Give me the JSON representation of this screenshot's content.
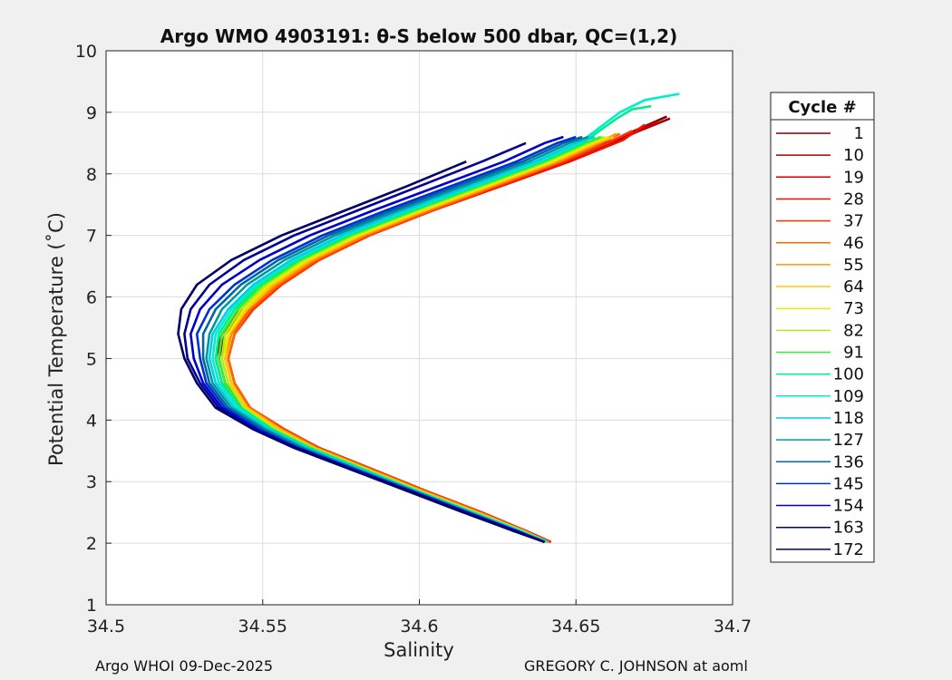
{
  "chart_data": {
    "type": "line",
    "title": "Argo WMO 4903191: θ-S below 500 dbar,  QC=(1,2)",
    "xlabel": "Salinity",
    "ylabel": "Potential Temperature (˚C)",
    "xlim": [
      34.5,
      34.7
    ],
    "ylim": [
      1,
      10
    ],
    "x_ticks": [
      "34.5",
      "34.55",
      "34.6",
      "34.65",
      "34.7"
    ],
    "y_ticks": [
      "1",
      "2",
      "3",
      "4",
      "5",
      "6",
      "7",
      "8",
      "9",
      "10"
    ],
    "grid": true,
    "legend_title": "Cycle #",
    "legend_position": "right",
    "series": [
      {
        "name": "1",
        "color": "#800000",
        "x": [
          34.641,
          34.633,
          34.618,
          34.6,
          34.583,
          34.566,
          34.554,
          34.543,
          34.537,
          34.535,
          34.537,
          34.543,
          34.552,
          34.564,
          34.58,
          34.6,
          34.622,
          34.645,
          34.662,
          34.679
        ],
        "y": [
          2.02,
          2.2,
          2.5,
          2.85,
          3.2,
          3.55,
          3.85,
          4.2,
          4.6,
          5.0,
          5.4,
          5.8,
          6.2,
          6.6,
          7.0,
          7.4,
          7.8,
          8.2,
          8.55,
          8.93
        ]
      },
      {
        "name": "10",
        "color": "#a00000",
        "x": [
          34.642,
          34.634,
          34.619,
          34.601,
          34.584,
          34.567,
          34.555,
          34.544,
          34.538,
          34.536,
          34.538,
          34.544,
          34.553,
          34.565,
          34.581,
          34.601,
          34.623,
          34.646,
          34.663,
          34.68
        ],
        "y": [
          2.02,
          2.2,
          2.5,
          2.85,
          3.2,
          3.55,
          3.85,
          4.2,
          4.6,
          5.0,
          5.4,
          5.8,
          6.2,
          6.6,
          7.0,
          7.4,
          7.8,
          8.2,
          8.55,
          8.9
        ]
      },
      {
        "name": "19",
        "color": "#cc0000",
        "x": [
          34.642,
          34.634,
          34.619,
          34.602,
          34.585,
          34.568,
          34.556,
          34.545,
          34.54,
          34.538,
          34.54,
          34.546,
          34.555,
          34.567,
          34.583,
          34.603,
          34.625,
          34.647,
          34.664,
          34.676
        ],
        "y": [
          2.02,
          2.2,
          2.5,
          2.85,
          3.2,
          3.55,
          3.85,
          4.2,
          4.6,
          5.0,
          5.4,
          5.8,
          6.2,
          6.6,
          7.0,
          7.4,
          7.8,
          8.2,
          8.55,
          8.85
        ]
      },
      {
        "name": "28",
        "color": "#ee1100",
        "x": [
          34.642,
          34.634,
          34.62,
          34.602,
          34.585,
          34.568,
          34.556,
          34.546,
          34.541,
          34.539,
          34.541,
          34.547,
          34.556,
          34.568,
          34.584,
          34.604,
          34.626,
          34.648,
          34.665,
          34.672
        ],
        "y": [
          2.02,
          2.2,
          2.5,
          2.85,
          3.2,
          3.55,
          3.85,
          4.2,
          4.6,
          5.0,
          5.4,
          5.8,
          6.2,
          6.6,
          7.0,
          7.4,
          7.8,
          8.2,
          8.55,
          8.8
        ]
      },
      {
        "name": "37",
        "color": "#ff3300",
        "x": [
          34.642,
          34.634,
          34.62,
          34.602,
          34.585,
          34.568,
          34.557,
          34.546,
          34.541,
          34.539,
          34.541,
          34.547,
          34.556,
          34.568,
          34.584,
          34.604,
          34.625,
          34.646,
          34.66,
          34.668
        ],
        "y": [
          2.02,
          2.2,
          2.5,
          2.85,
          3.2,
          3.55,
          3.85,
          4.2,
          4.6,
          5.0,
          5.4,
          5.8,
          6.2,
          6.6,
          7.0,
          7.4,
          7.8,
          8.2,
          8.5,
          8.7
        ]
      },
      {
        "name": "46",
        "color": "#ff6600",
        "x": [
          34.641,
          34.633,
          34.619,
          34.601,
          34.584,
          34.567,
          34.556,
          34.546,
          34.541,
          34.539,
          34.541,
          34.546,
          34.555,
          34.567,
          34.583,
          34.603,
          34.624,
          34.645,
          34.658,
          34.664
        ],
        "y": [
          2.02,
          2.2,
          2.5,
          2.85,
          3.2,
          3.55,
          3.85,
          4.2,
          4.6,
          5.0,
          5.4,
          5.8,
          6.2,
          6.6,
          7.0,
          7.4,
          7.8,
          8.2,
          8.5,
          8.65
        ]
      },
      {
        "name": "55",
        "color": "#ff9900",
        "x": [
          34.641,
          34.633,
          34.619,
          34.601,
          34.584,
          34.567,
          34.556,
          34.545,
          34.54,
          34.538,
          34.54,
          34.545,
          34.554,
          34.566,
          34.582,
          34.602,
          34.623,
          34.644,
          34.657,
          34.663
        ],
        "y": [
          2.02,
          2.2,
          2.5,
          2.85,
          3.2,
          3.55,
          3.85,
          4.2,
          4.6,
          5.0,
          5.4,
          5.8,
          6.2,
          6.6,
          7.0,
          7.4,
          7.8,
          8.2,
          8.5,
          8.65
        ]
      },
      {
        "name": "64",
        "color": "#ffcc00",
        "x": [
          34.641,
          34.633,
          34.618,
          34.6,
          34.583,
          34.566,
          34.555,
          34.545,
          34.54,
          34.538,
          34.539,
          34.545,
          34.553,
          34.565,
          34.581,
          34.601,
          34.622,
          34.643,
          34.656,
          34.662
        ],
        "y": [
          2.02,
          2.2,
          2.5,
          2.85,
          3.2,
          3.55,
          3.85,
          4.2,
          4.6,
          5.0,
          5.4,
          5.8,
          6.2,
          6.6,
          7.0,
          7.4,
          7.8,
          8.2,
          8.5,
          8.6
        ]
      },
      {
        "name": "73",
        "color": "#eeee00",
        "x": [
          34.641,
          34.633,
          34.618,
          34.6,
          34.583,
          34.566,
          34.554,
          34.544,
          34.539,
          34.537,
          34.539,
          34.544,
          34.552,
          34.564,
          34.58,
          34.6,
          34.621,
          34.642,
          34.655,
          34.66
        ],
        "y": [
          2.02,
          2.2,
          2.5,
          2.85,
          3.2,
          3.55,
          3.85,
          4.2,
          4.6,
          5.0,
          5.4,
          5.8,
          6.2,
          6.6,
          7.0,
          7.4,
          7.8,
          8.2,
          8.5,
          8.6
        ]
      },
      {
        "name": "82",
        "color": "#aaee22",
        "x": [
          34.641,
          34.633,
          34.618,
          34.6,
          34.583,
          34.566,
          34.554,
          34.544,
          34.539,
          34.537,
          34.538,
          34.543,
          34.551,
          34.563,
          34.579,
          34.599,
          34.62,
          34.641,
          34.654,
          34.659
        ],
        "y": [
          2.02,
          2.2,
          2.5,
          2.85,
          3.2,
          3.55,
          3.85,
          4.2,
          4.6,
          5.0,
          5.4,
          5.8,
          6.2,
          6.6,
          7.0,
          7.4,
          7.8,
          8.2,
          8.5,
          8.6
        ]
      },
      {
        "name": "91",
        "color": "#33ee33",
        "x": [
          34.641,
          34.632,
          34.617,
          34.599,
          34.582,
          34.565,
          34.553,
          34.543,
          34.538,
          34.536,
          34.537,
          34.542,
          34.55,
          34.562,
          34.578,
          34.598,
          34.619,
          34.64,
          34.653,
          34.658
        ],
        "y": [
          2.02,
          2.2,
          2.5,
          2.85,
          3.2,
          3.55,
          3.85,
          4.2,
          4.6,
          5.0,
          5.4,
          5.8,
          6.2,
          6.6,
          7.0,
          7.4,
          7.8,
          8.2,
          8.5,
          8.6
        ]
      },
      {
        "name": "100",
        "color": "#00ee88",
        "x": [
          34.641,
          34.632,
          34.617,
          34.599,
          34.582,
          34.565,
          34.553,
          34.543,
          34.537,
          34.535,
          34.536,
          34.541,
          34.549,
          34.561,
          34.577,
          34.597,
          34.618,
          34.639,
          34.652,
          34.663,
          34.668,
          34.674
        ],
        "y": [
          2.02,
          2.2,
          2.5,
          2.85,
          3.2,
          3.55,
          3.85,
          4.2,
          4.6,
          5.0,
          5.4,
          5.8,
          6.2,
          6.6,
          7.0,
          7.4,
          7.8,
          8.2,
          8.5,
          8.9,
          9.05,
          9.1
        ]
      },
      {
        "name": "109",
        "color": "#00eecc",
        "x": [
          34.641,
          34.632,
          34.617,
          34.599,
          34.581,
          34.564,
          34.552,
          34.542,
          34.536,
          34.534,
          34.535,
          34.54,
          34.548,
          34.56,
          34.576,
          34.596,
          34.617,
          34.638,
          34.651,
          34.664,
          34.672,
          34.683
        ],
        "y": [
          2.02,
          2.2,
          2.5,
          2.85,
          3.2,
          3.55,
          3.85,
          4.2,
          4.6,
          5.0,
          5.4,
          5.8,
          6.2,
          6.6,
          7.0,
          7.4,
          7.8,
          8.2,
          8.5,
          9.0,
          9.2,
          9.3
        ]
      },
      {
        "name": "118",
        "color": "#00ccee",
        "x": [
          34.64,
          34.632,
          34.617,
          34.599,
          34.581,
          34.564,
          34.552,
          34.541,
          34.535,
          34.533,
          34.534,
          34.539,
          34.547,
          34.559,
          34.575,
          34.595,
          34.616,
          34.637,
          34.65,
          34.656
        ],
        "y": [
          2.02,
          2.2,
          2.5,
          2.85,
          3.2,
          3.55,
          3.85,
          4.2,
          4.6,
          5.0,
          5.4,
          5.8,
          6.2,
          6.6,
          7.0,
          7.4,
          7.8,
          8.2,
          8.5,
          8.6
        ]
      },
      {
        "name": "127",
        "color": "#009999",
        "x": [
          34.64,
          34.631,
          34.616,
          34.598,
          34.58,
          34.563,
          34.551,
          34.54,
          34.534,
          34.532,
          34.533,
          34.537,
          34.545,
          34.557,
          34.573,
          34.593,
          34.614,
          34.635,
          34.648,
          34.654
        ],
        "y": [
          2.02,
          2.2,
          2.5,
          2.85,
          3.2,
          3.55,
          3.85,
          4.2,
          4.6,
          5.0,
          5.4,
          5.8,
          6.2,
          6.6,
          7.0,
          7.4,
          7.8,
          8.2,
          8.5,
          8.6
        ]
      },
      {
        "name": "136",
        "color": "#0066aa",
        "x": [
          34.64,
          34.631,
          34.616,
          34.598,
          34.58,
          34.562,
          34.55,
          34.539,
          34.533,
          34.531,
          34.531,
          34.535,
          34.543,
          34.555,
          34.571,
          34.591,
          34.612,
          34.633,
          34.646,
          34.652
        ],
        "y": [
          2.02,
          2.2,
          2.5,
          2.85,
          3.2,
          3.55,
          3.85,
          4.2,
          4.6,
          5.0,
          5.4,
          5.8,
          6.2,
          6.6,
          7.0,
          7.4,
          7.8,
          8.2,
          8.5,
          8.6
        ]
      },
      {
        "name": "145",
        "color": "#0033cc",
        "x": [
          34.64,
          34.631,
          34.615,
          34.597,
          34.579,
          34.561,
          34.549,
          34.538,
          34.532,
          34.53,
          34.529,
          34.533,
          34.541,
          34.553,
          34.569,
          34.589,
          34.61,
          34.631,
          34.644,
          34.65
        ],
        "y": [
          2.02,
          2.2,
          2.5,
          2.85,
          3.2,
          3.55,
          3.85,
          4.2,
          4.6,
          5.0,
          5.4,
          5.8,
          6.2,
          6.6,
          7.0,
          7.4,
          7.8,
          8.2,
          8.5,
          8.6
        ]
      },
      {
        "name": "154",
        "color": "#0000cc",
        "x": [
          34.64,
          34.631,
          34.615,
          34.597,
          34.579,
          34.561,
          34.548,
          34.537,
          34.531,
          34.528,
          34.527,
          34.53,
          34.537,
          34.549,
          34.565,
          34.585,
          34.606,
          34.627,
          34.64,
          34.646
        ],
        "y": [
          2.02,
          2.2,
          2.5,
          2.85,
          3.2,
          3.55,
          3.85,
          4.2,
          4.6,
          5.0,
          5.4,
          5.8,
          6.2,
          6.6,
          7.0,
          7.4,
          7.8,
          8.2,
          8.5,
          8.6
        ]
      },
      {
        "name": "163",
        "color": "#000099",
        "x": [
          34.64,
          34.63,
          34.615,
          34.597,
          34.578,
          34.56,
          34.547,
          34.536,
          34.53,
          34.526,
          34.525,
          34.527,
          34.533,
          34.544,
          34.56,
          34.58,
          34.6,
          34.62,
          34.634
        ],
        "y": [
          2.02,
          2.2,
          2.5,
          2.85,
          3.2,
          3.55,
          3.85,
          4.2,
          4.6,
          5.0,
          5.4,
          5.8,
          6.2,
          6.6,
          7.0,
          7.4,
          7.8,
          8.2,
          8.5
        ]
      },
      {
        "name": "172",
        "color": "#000066",
        "x": [
          34.64,
          34.63,
          34.614,
          34.596,
          34.578,
          34.56,
          34.547,
          34.535,
          34.529,
          34.525,
          34.523,
          34.524,
          34.529,
          34.54,
          34.556,
          34.576,
          34.596,
          34.615
        ],
        "y": [
          2.02,
          2.2,
          2.5,
          2.85,
          3.2,
          3.55,
          3.85,
          4.2,
          4.6,
          5.0,
          5.4,
          5.8,
          6.2,
          6.6,
          7.0,
          7.4,
          7.8,
          8.2
        ]
      }
    ]
  },
  "footer": {
    "left": "Argo WHOI 09-Dec-2025",
    "right": "GREGORY C. JOHNSON at aoml"
  }
}
